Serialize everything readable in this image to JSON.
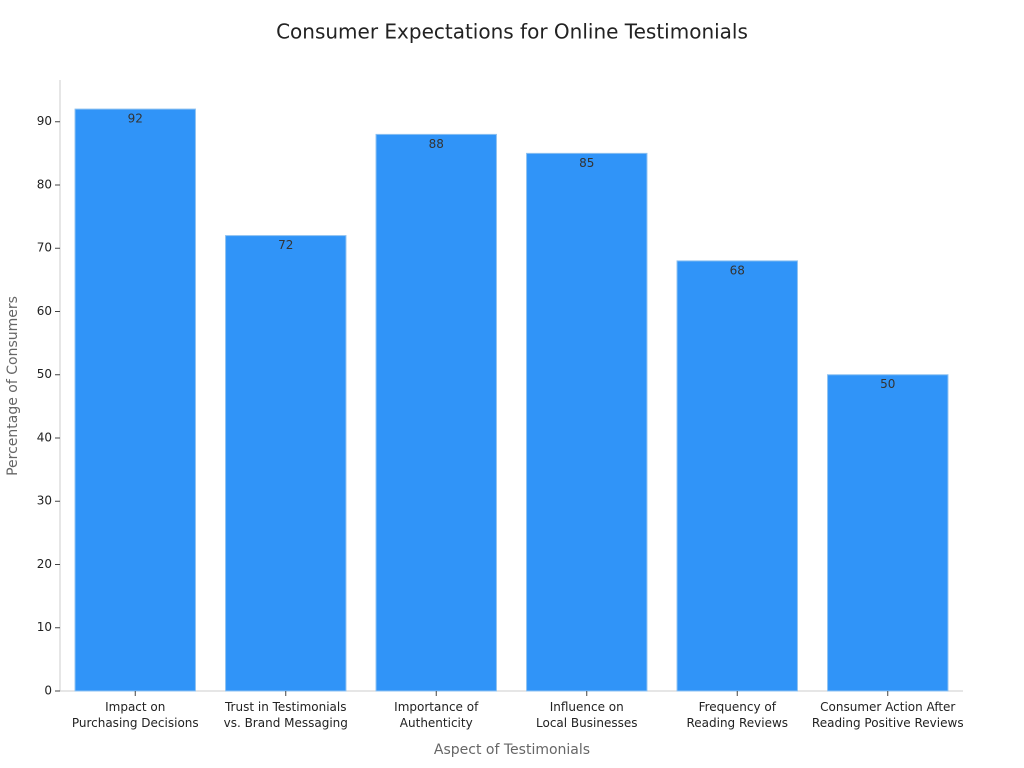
{
  "chart_data": {
    "type": "bar",
    "title": "Consumer Expectations for Online Testimonials",
    "x_label": "Aspect of Testimonials",
    "y_label": "Percentage of Consumers",
    "categories": [
      "Impact on\nPurchasing Decisions",
      "Trust in Testimonials\nvs. Brand Messaging",
      "Importance of\nAuthenticity",
      "Influence on\nLocal Businesses",
      "Frequency of\nReading Reviews",
      "Consumer Action After\nReading Positive Reviews"
    ],
    "values": [
      92,
      72,
      88,
      85,
      68,
      50
    ],
    "color": "#3094f8",
    "ylim": [
      0,
      96.6
    ],
    "yticks": [
      0,
      10,
      20,
      30,
      40,
      50,
      60,
      70,
      80,
      90
    ],
    "grid": false
  }
}
